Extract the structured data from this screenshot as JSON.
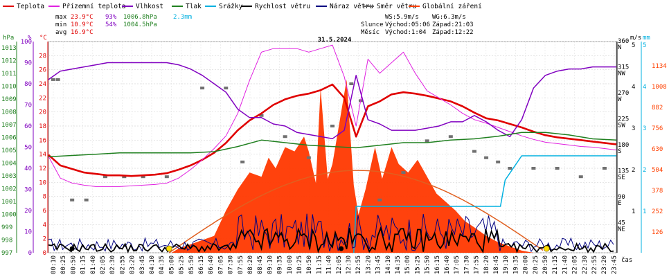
{
  "chart_data": {
    "type": "line",
    "title": "31.5.2024",
    "legend": [
      {
        "name": "Teplota",
        "color": "#e00000"
      },
      {
        "name": "Přízemní teplota",
        "color": "#e020e0"
      },
      {
        "name": "Vlhkost",
        "color": "#8000c0"
      },
      {
        "name": "Tlak",
        "color": "#208020"
      },
      {
        "name": "Srážky",
        "color": "#00b0e0"
      },
      {
        "name": "Rychlost větru",
        "color": "#000000"
      },
      {
        "name": "Náraz větru",
        "color": "#000080"
      },
      {
        "name": "Směr větru",
        "color": "#606060"
      },
      {
        "name": "Globální záření",
        "color": "#ff4000"
      }
    ],
    "stats": {
      "max_label": "max",
      "max_temp": "23.9°C",
      "max_hum": "93%",
      "max_press": "1006.8hPa",
      "max_rain": "2.3mm",
      "min_label": "min",
      "min_temp": "10.9°C",
      "min_hum": "54%",
      "min_press": "1004.5hPa",
      "avg_label": "avg",
      "avg_temp": "16.9°C"
    },
    "info": {
      "ws": "WS:5.9m/s",
      "wg": "WG:6.3m/s",
      "sun_label": "Slunce",
      "sun_rise": "Východ:05:06",
      "sun_set": "Západ:21:03",
      "moon_label": "Měsíc",
      "moon_rise": "Východ:1:04",
      "moon_set": "Západ:12:22"
    },
    "axes": {
      "hpa_unit": "hPa",
      "pct_unit": "%",
      "c_unit": "°C",
      "ms_unit": "m/s",
      "mm_unit": "mm",
      "time_unit": "čas",
      "hpa_ticks": [
        "1013",
        "1012",
        "1011",
        "1010",
        "1009",
        "1008",
        "1007",
        "1006",
        "1005",
        "1004",
        "1003",
        "1002",
        "1001",
        "1000",
        "999",
        "998",
        "997"
      ],
      "pct_ticks": [
        "100",
        "90",
        "80",
        "70",
        "60",
        "50",
        "40",
        "30",
        "20",
        "10",
        "0"
      ],
      "c_ticks": [
        "28",
        "26",
        "24",
        "22",
        "20",
        "18",
        "16",
        "14",
        "12",
        "10",
        "8",
        "6",
        "4",
        "2",
        "0"
      ],
      "dir_ticks": [
        {
          "deg": "360",
          "name": "N"
        },
        {
          "deg": "315",
          "name": "NW"
        },
        {
          "deg": "270",
          "name": "W"
        },
        {
          "deg": "225",
          "name": "SW"
        },
        {
          "deg": "180",
          "name": "S"
        },
        {
          "deg": "135",
          "name": "SE"
        },
        {
          "deg": "90",
          "name": "E"
        },
        {
          "deg": "45",
          "name": "NE"
        }
      ],
      "ms_ticks": [
        "5",
        "4",
        "3",
        "2",
        "1"
      ],
      "rad_ticks": [
        "1134",
        "1008",
        "882",
        "756",
        "630",
        "504",
        "378",
        "252",
        "126"
      ],
      "time_ticks": [
        "00:10",
        "00:25",
        "00:50",
        "01:15",
        "01:40",
        "02:05",
        "02:30",
        "02:55",
        "03:20",
        "03:45",
        "04:10",
        "04:35",
        "05:00",
        "05:25",
        "05:50",
        "06:15",
        "06:40",
        "07:05",
        "07:30",
        "07:55",
        "08:20",
        "08:45",
        "09:10",
        "09:35",
        "10:00",
        "10:25",
        "10:50",
        "11:15",
        "11:40",
        "12:05",
        "12:30",
        "12:55",
        "13:20",
        "13:45",
        "14:10",
        "14:35",
        "15:00",
        "15:25",
        "15:50",
        "16:15",
        "16:40",
        "17:05",
        "17:30",
        "17:55",
        "18:20",
        "18:45",
        "19:10",
        "19:35",
        "20:00",
        "20:25",
        "20:50",
        "21:15",
        "21:40",
        "22:05",
        "22:30",
        "22:55",
        "23:20",
        "23:45"
      ]
    },
    "ylim": {
      "temp_c": [
        0,
        30
      ],
      "humidity_pct": [
        0,
        100
      ],
      "pressure_hpa": [
        997,
        1013.5
      ]
    },
    "series": [
      {
        "name": "Teplota",
        "unit": "°C",
        "x_hours": [
          0,
          0.5,
          1,
          1.5,
          2,
          2.5,
          3,
          3.5,
          4,
          4.5,
          5,
          5.5,
          6,
          6.5,
          7,
          7.5,
          8,
          8.5,
          9,
          9.5,
          10,
          10.5,
          11,
          11.5,
          12,
          12.5,
          13,
          13.5,
          14,
          14.5,
          15,
          15.5,
          16,
          16.5,
          17,
          17.5,
          18,
          18.5,
          19,
          19.5,
          20,
          20.5,
          21,
          21.5,
          22,
          22.5,
          23,
          23.5,
          24
        ],
        "values": [
          13.9,
          12.4,
          11.9,
          11.4,
          11.2,
          11.0,
          11.0,
          10.9,
          11.0,
          11.1,
          11.3,
          11.8,
          12.4,
          13.2,
          14.2,
          15.6,
          17.4,
          18.8,
          19.8,
          21.0,
          21.8,
          22.3,
          22.6,
          23.1,
          23.9,
          22.0,
          16.5,
          20.8,
          21.5,
          22.5,
          22.8,
          22.6,
          22.3,
          21.9,
          21.5,
          20.8,
          19.9,
          19.1,
          18.8,
          18.3,
          17.8,
          17.2,
          16.7,
          16.4,
          16.2,
          16.0,
          15.8,
          15.6,
          15.4
        ]
      },
      {
        "name": "Přízemní teplota",
        "unit": "°C",
        "x_hours": [
          0,
          0.5,
          1,
          1.5,
          2,
          2.5,
          3,
          3.5,
          4,
          4.5,
          5,
          5.5,
          6,
          6.5,
          7,
          7.5,
          8,
          8.5,
          9,
          9.5,
          10,
          10.5,
          11,
          11.5,
          12,
          12.5,
          13,
          13.5,
          14,
          14.5,
          15,
          15.5,
          16,
          16.5,
          17,
          17.5,
          18,
          18.5,
          19,
          19.5,
          20,
          20.5,
          21,
          21.5,
          22,
          22.5,
          23,
          23.5,
          24
        ],
        "values": [
          13.7,
          10.6,
          9.9,
          9.6,
          9.4,
          9.4,
          9.4,
          9.5,
          9.6,
          9.7,
          9.9,
          10.6,
          11.8,
          13.2,
          14.8,
          16.6,
          19.8,
          24.5,
          28.5,
          29.0,
          29.0,
          29.0,
          28.5,
          29.0,
          29.5,
          25.0,
          18.0,
          27.5,
          25.5,
          27.0,
          28.5,
          25.5,
          23.0,
          22.0,
          21.0,
          19.8,
          18.9,
          18.4,
          17.8,
          17.2,
          16.6,
          16.1,
          15.7,
          15.5,
          15.3,
          15.1,
          15.0,
          14.8,
          14.6
        ]
      },
      {
        "name": "Vlhkost",
        "unit": "%",
        "x_hours": [
          0,
          0.5,
          1,
          1.5,
          2,
          2.5,
          3,
          3.5,
          4,
          4.5,
          5,
          5.5,
          6,
          6.5,
          7,
          7.5,
          8,
          8.5,
          9,
          9.5,
          10,
          10.5,
          11,
          11.5,
          12,
          12.5,
          13,
          13.5,
          14,
          14.5,
          15,
          15.5,
          16,
          16.5,
          17,
          17.5,
          18,
          18.5,
          19,
          19.5,
          20,
          20.5,
          21,
          21.5,
          22,
          22.5,
          23,
          23.5,
          24
        ],
        "values": [
          82,
          86,
          87,
          88,
          89,
          90,
          90,
          90,
          90,
          90,
          90,
          89,
          87,
          84,
          80,
          76,
          68,
          64,
          64,
          61,
          60,
          57,
          56,
          55,
          54,
          58,
          84,
          63,
          61,
          58,
          58,
          58,
          59,
          60,
          62,
          62,
          65,
          62,
          58,
          55,
          63,
          78,
          84,
          86,
          87,
          87,
          88,
          88,
          88
        ]
      },
      {
        "name": "Tlak",
        "unit": "hPa",
        "x_hours": [
          0,
          1,
          2,
          3,
          4,
          5,
          6,
          7,
          8,
          9,
          10,
          11,
          12,
          13,
          14,
          15,
          16,
          17,
          18,
          19,
          20,
          21,
          22,
          23,
          24
        ],
        "values": [
          1004.5,
          1004.6,
          1004.7,
          1004.8,
          1004.8,
          1004.8,
          1004.8,
          1004.9,
          1005.3,
          1005.8,
          1005.6,
          1005.4,
          1005.3,
          1005.2,
          1005.4,
          1005.6,
          1005.6,
          1005.8,
          1005.9,
          1006.1,
          1006.4,
          1006.4,
          1006.2,
          1005.9,
          1005.8
        ]
      }
    ]
  }
}
